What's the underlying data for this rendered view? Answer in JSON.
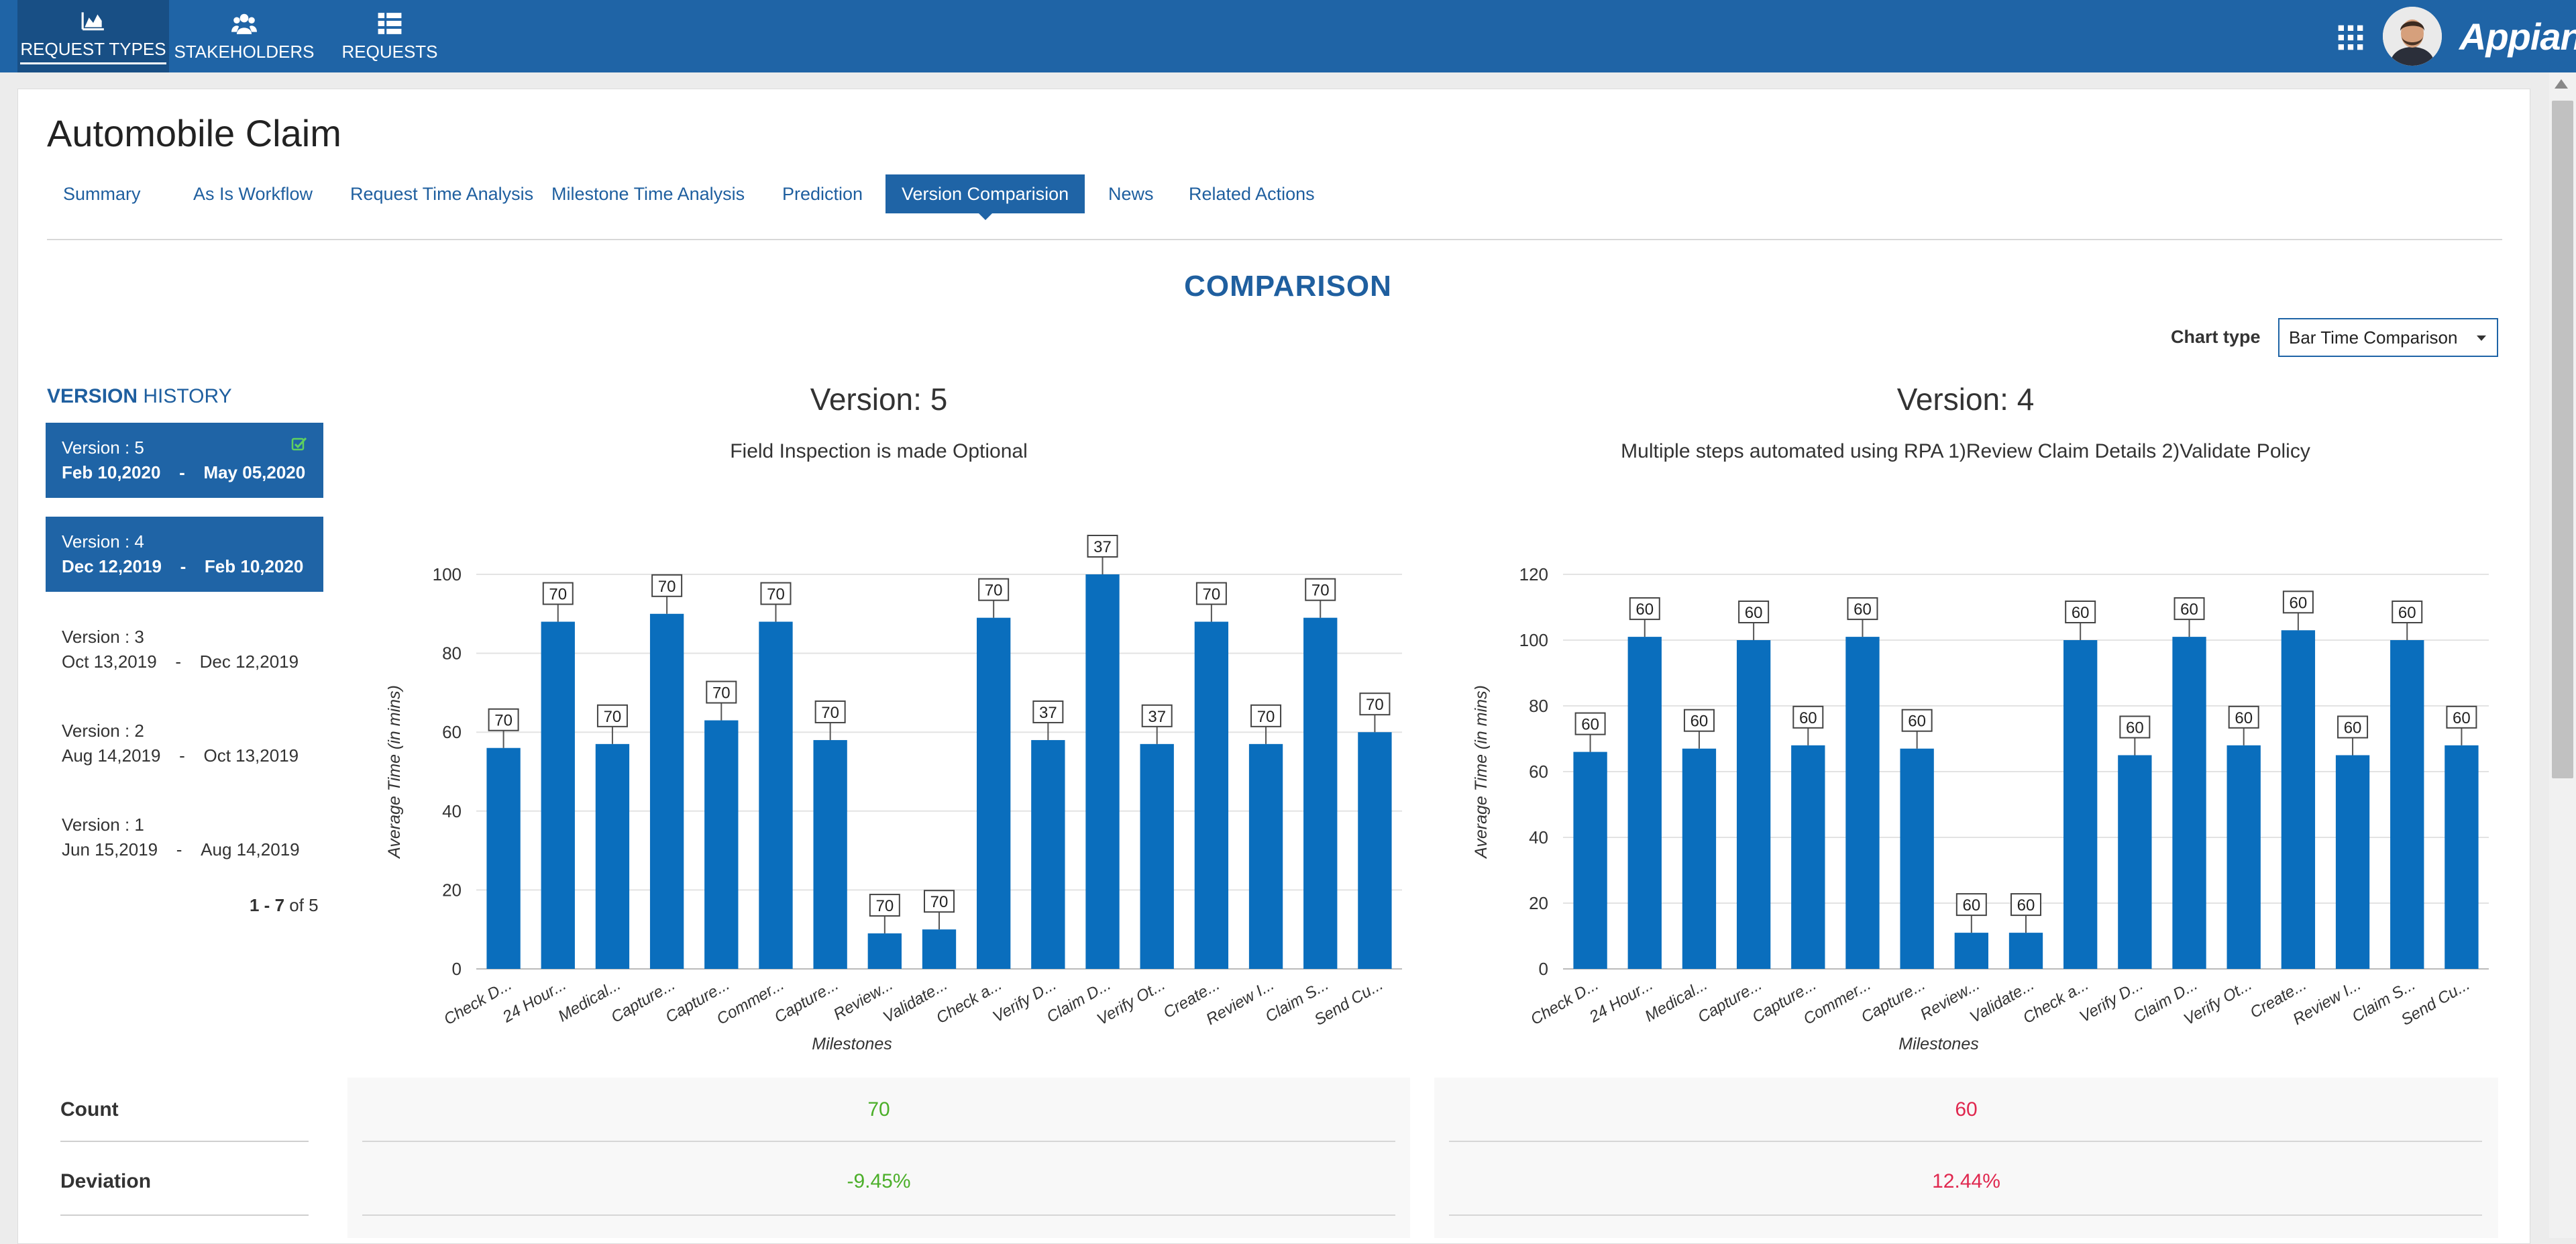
{
  "nav": {
    "items": [
      {
        "label": "REQUEST TYPES",
        "icon": "area-chart-icon",
        "active": true
      },
      {
        "label": "STAKEHOLDERS",
        "icon": "users-icon",
        "active": false
      },
      {
        "label": "REQUESTS",
        "icon": "list-icon",
        "active": false
      }
    ],
    "brand": "Appian"
  },
  "page": {
    "title": "Automobile Claim",
    "tabs": [
      {
        "label": "Summary",
        "active": false
      },
      {
        "label": "As Is Workflow",
        "active": false
      },
      {
        "label": "Request Time Analysis",
        "active": false
      },
      {
        "label": "Milestone Time Analysis",
        "active": false
      },
      {
        "label": "Prediction",
        "active": false
      },
      {
        "label": "Version Comparision",
        "active": true
      },
      {
        "label": "News",
        "active": false
      },
      {
        "label": "Related Actions",
        "active": false
      }
    ],
    "heading": "COMPARISON",
    "chart_type_label": "Chart type",
    "chart_type_value": "Bar Time Comparison"
  },
  "version_history": {
    "title_bold": "VERSION",
    "title_rest": " HISTORY",
    "items": [
      {
        "version": "Version : 5",
        "start": "Feb 10,2020",
        "sep": "-",
        "end": "May 05,2020",
        "selected": true,
        "current": true
      },
      {
        "version": "Version : 4",
        "start": "Dec 12,2019",
        "sep": "-",
        "end": "Feb 10,2020",
        "selected": true,
        "current": false
      },
      {
        "version": "Version : 3",
        "start": "Oct 13,2019",
        "sep": "-",
        "end": "Dec 12,2019",
        "selected": false,
        "current": false
      },
      {
        "version": "Version : 2",
        "start": "Aug 14,2019",
        "sep": "-",
        "end": "Oct 13,2019",
        "selected": false,
        "current": false
      },
      {
        "version": "Version : 1",
        "start": "Jun 15,2019",
        "sep": "-",
        "end": "Aug 14,2019",
        "selected": false,
        "current": false
      }
    ],
    "pager_range": "1 - 7",
    "pager_total": " of 5"
  },
  "colors": {
    "nav_bg": "#1f64a6",
    "accent": "#1f64a6",
    "bar": "#0a6ebd",
    "positive": "#4caf2a",
    "negative": "#e0284f"
  },
  "chart_data": [
    {
      "type": "bar",
      "title": "Version: 5",
      "subtitle": "Field Inspection is made Optional",
      "xlabel": "Milestones",
      "ylabel": "Average Time (in mins)",
      "ylim": [
        0,
        100
      ],
      "yticks": [
        0,
        20,
        40,
        60,
        80,
        100
      ],
      "grid": true,
      "categories": [
        "Check D...",
        "24 Hour...",
        "Medical...",
        "Capture...",
        "Capture...",
        "Commer...",
        "Capture...",
        "Review...",
        "Validate...",
        "Check a...",
        "Verify D...",
        "Claim D...",
        "Verify Ot...",
        "Create...",
        "Review I...",
        "Claim S...",
        "Send Cu..."
      ],
      "values": [
        56,
        88,
        57,
        90,
        63,
        88,
        58,
        9,
        10,
        89,
        58,
        100,
        57,
        88,
        57,
        89,
        60
      ],
      "data_labels": [
        "70",
        "70",
        "70",
        "70",
        "70",
        "70",
        "70",
        "70",
        "70",
        "70",
        "37",
        "37",
        "37",
        "70",
        "70",
        "70",
        "70"
      ]
    },
    {
      "type": "bar",
      "title": "Version: 4",
      "subtitle": "Multiple steps automated using RPA 1)Review Claim Details 2)Validate Policy",
      "xlabel": "Milestones",
      "ylabel": "Average Time (in mins)",
      "ylim": [
        0,
        120
      ],
      "yticks": [
        0,
        20,
        40,
        60,
        80,
        100,
        120
      ],
      "grid": true,
      "categories": [
        "Check D...",
        "24 Hour...",
        "Medical...",
        "Capture...",
        "Capture...",
        "Commer...",
        "Capture...",
        "Review...",
        "Validate...",
        "Check a...",
        "Verify D...",
        "Claim D...",
        "Verify Ot...",
        "Create...",
        "Review I...",
        "Claim S...",
        "Send Cu..."
      ],
      "values": [
        66,
        101,
        67,
        100,
        68,
        101,
        67,
        11,
        11,
        100,
        65,
        101,
        68,
        103,
        65,
        100,
        68
      ],
      "data_labels": [
        "60",
        "60",
        "60",
        "60",
        "60",
        "60",
        "60",
        "60",
        "60",
        "60",
        "60",
        "60",
        "60",
        "60",
        "60",
        "60",
        "60"
      ]
    }
  ],
  "stats": {
    "rows": [
      {
        "label": "Count",
        "left": "70",
        "right": "60"
      },
      {
        "label": "Deviation",
        "left": "-9.45%",
        "right": "12.44%"
      }
    ]
  }
}
